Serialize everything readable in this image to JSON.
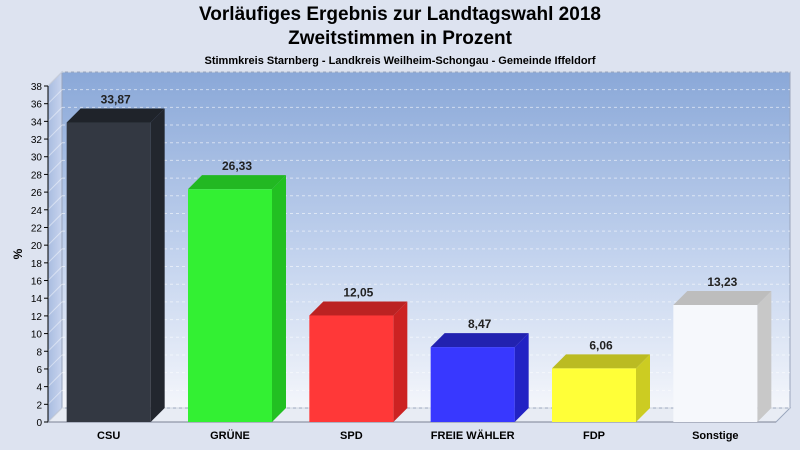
{
  "chart_data": {
    "type": "bar",
    "title": "Vorläufiges Ergebnis zur Landtagswahl 2018",
    "subtitle_line": "Zweitstimmen in Prozent",
    "caption": "Stimmkreis Starnberg - Landkreis Weilheim-Schongau - Gemeinde Iffeldorf",
    "ylabel": "%",
    "xlabel": "",
    "ylim": [
      0,
      38
    ],
    "ytick_step": 2,
    "yticks": [
      "0",
      "2",
      "4",
      "6",
      "8",
      "10",
      "12",
      "14",
      "16",
      "18",
      "20",
      "22",
      "24",
      "26",
      "28",
      "30",
      "32",
      "34",
      "36",
      "38"
    ],
    "grid": true,
    "categories": [
      "CSU",
      "GRÜNE",
      "SPD",
      "FREIE WÄHLER",
      "FDP",
      "Sonstige"
    ],
    "values": [
      33.87,
      26.33,
      12.05,
      8.47,
      6.06,
      13.23
    ],
    "value_labels": [
      "33,87",
      "26,33",
      "12,05",
      "8,47",
      "6,06",
      "13,23"
    ],
    "colors": [
      "#333842",
      "#33f033",
      "#ff3838",
      "#3838ff",
      "#ffff38",
      "#f6f8fc"
    ],
    "side_colors": [
      "#22262e",
      "#22c022",
      "#cc2222",
      "#2222c4",
      "#cccc22",
      "#c8c8c8"
    ],
    "top_colors": [
      "#1f232a",
      "#22b822",
      "#bb2222",
      "#2222b0",
      "#bbbb22",
      "#bdbdbd"
    ]
  }
}
